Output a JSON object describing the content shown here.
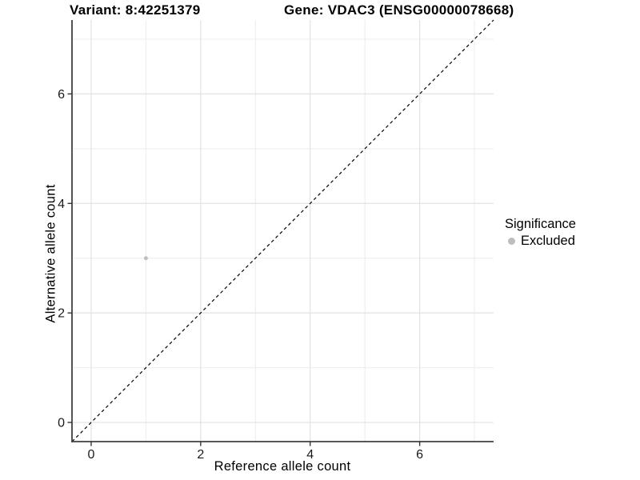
{
  "header": {
    "variant_title": "Variant: 8:42251379",
    "gene_title": "Gene: VDAC3 (ENSG00000078668)"
  },
  "chart_data": {
    "type": "scatter",
    "title": "Variant: 8:42251379 / Gene: VDAC3 (ENSG00000078668)",
    "xlabel": "Reference allele count",
    "ylabel": "Alternative allele count",
    "xlim": [
      -0.35,
      7.35
    ],
    "ylim": [
      -0.35,
      7.35
    ],
    "x_ticks": [
      0,
      2,
      4,
      6
    ],
    "y_ticks": [
      0,
      2,
      4,
      6
    ],
    "x_minor_ticks": [
      1,
      3,
      5,
      7
    ],
    "y_minor_ticks": [
      1,
      3,
      5,
      7
    ],
    "grid": "on",
    "series": [
      {
        "name": "Excluded",
        "color": "#bfbfbf",
        "points": [
          {
            "x": 1,
            "y": 3
          }
        ]
      }
    ],
    "reference_line": {
      "style": "dashed",
      "color": "#000000",
      "slope": 1,
      "intercept": 0,
      "from": [
        -0.35,
        -0.35
      ],
      "to": [
        7.35,
        7.35
      ]
    },
    "legend": {
      "title": "Significance",
      "position": "right",
      "entries": [
        {
          "label": "Excluded",
          "color": "#bdbdbd"
        }
      ]
    }
  },
  "colors": {
    "background": "#ffffff",
    "grid_major": "#e2e2e2",
    "grid_minor": "#ececec",
    "axis_line": "#404040",
    "tick_mark": "#333333",
    "tick_text": "#1a1a1a",
    "point": "#bfbfbf",
    "legend_key": "#bdbdbd",
    "reference_line": "#000000"
  }
}
